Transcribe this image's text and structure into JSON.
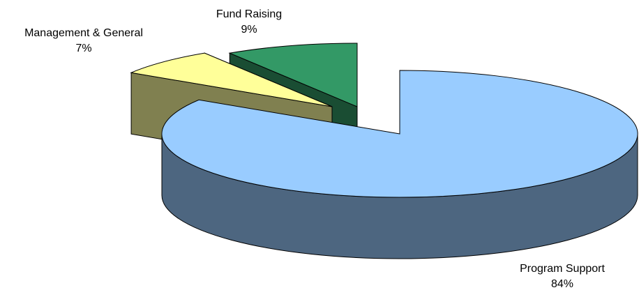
{
  "chart_data": {
    "type": "pie",
    "title": "",
    "categories": [
      "Program Support",
      "Management & General",
      "Fund Raising"
    ],
    "values": [
      84,
      7,
      9
    ],
    "value_labels": [
      "84%",
      "7%",
      "9%"
    ],
    "unit": "%",
    "legend": "none",
    "style": "3d-exploded",
    "colors": {
      "Program Support": {
        "top": "#99ccff",
        "side": "#4d6680"
      },
      "Management & General": {
        "top": "#ffff99",
        "side": "#808050"
      },
      "Fund Raising": {
        "top": "#339966",
        "side": "#1a4d33"
      }
    }
  }
}
